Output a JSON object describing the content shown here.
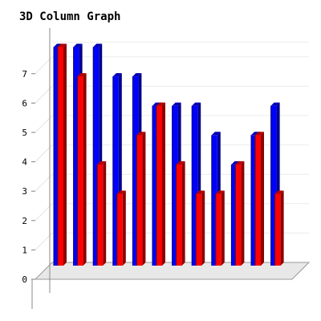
{
  "chart_data": {
    "type": "bar",
    "title": "3D Column Graph",
    "ylim": [
      0,
      7
    ],
    "yticks": [
      0,
      1,
      2,
      3,
      4,
      5,
      6,
      7
    ],
    "grid": true,
    "series": [
      {
        "color": "#0000ff",
        "values": [
          7.5,
          7.5,
          7.5,
          6.5,
          6.5,
          5.5,
          5.5,
          5.5,
          4.5,
          3.5,
          4.5,
          5.5
        ]
      },
      {
        "color": "#ff0000",
        "values": [
          7.5,
          6.5,
          3.5,
          2.5,
          4.5,
          5.5,
          3.5,
          2.5,
          2.5,
          3.5,
          4.5,
          2.5
        ]
      }
    ]
  }
}
